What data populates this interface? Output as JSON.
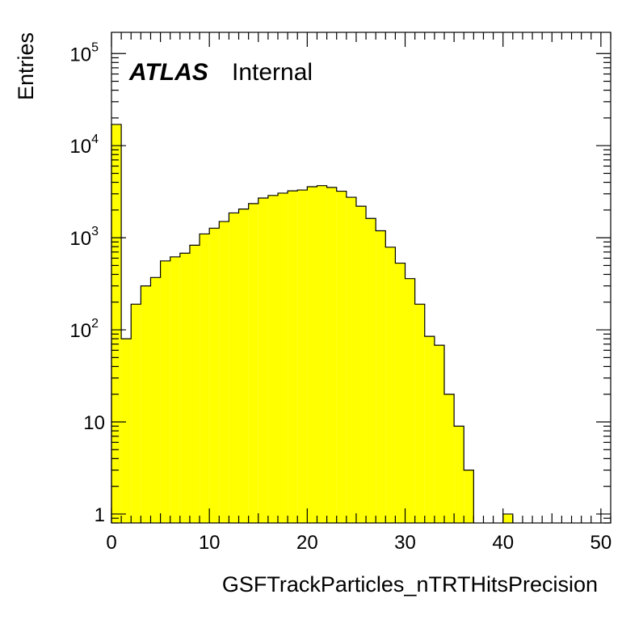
{
  "chart_data": {
    "type": "bar",
    "xlabel": "GSFTrackParticles_nTRTHitsPrecision",
    "ylabel": "Entries",
    "annotations": {
      "experiment": "ATLAS",
      "status": "Internal"
    },
    "xlim": [
      0,
      51
    ],
    "ylim": [
      0.8,
      170000
    ],
    "log_y": true,
    "bin_width": 1,
    "fill_color": "#ffff00",
    "line_color": "#000000",
    "x_ticks": [
      0,
      10,
      20,
      30,
      40,
      50
    ],
    "x_tick_labels": [
      "0",
      "10",
      "20",
      "30",
      "40",
      "50"
    ],
    "y_ticks": [
      1,
      10,
      100,
      1000,
      10000,
      100000
    ],
    "y_tick_labels": [
      {
        "base": "1",
        "exp": ""
      },
      {
        "base": "10",
        "exp": ""
      },
      {
        "base": "10",
        "exp": "2"
      },
      {
        "base": "10",
        "exp": "3"
      },
      {
        "base": "10",
        "exp": "4"
      },
      {
        "base": "10",
        "exp": "5"
      }
    ],
    "bin_low_edges": [
      0,
      1,
      2,
      3,
      4,
      5,
      6,
      7,
      8,
      9,
      10,
      11,
      12,
      13,
      14,
      15,
      16,
      17,
      18,
      19,
      20,
      21,
      22,
      23,
      24,
      25,
      26,
      27,
      28,
      29,
      30,
      31,
      32,
      33,
      34,
      35,
      36,
      37,
      38,
      39,
      40
    ],
    "values": [
      17000,
      80,
      190,
      300,
      370,
      560,
      620,
      680,
      830,
      1100,
      1270,
      1500,
      1860,
      2050,
      2350,
      2700,
      2880,
      3050,
      3230,
      3300,
      3580,
      3680,
      3520,
      3200,
      2750,
      2200,
      1620,
      1190,
      790,
      530,
      360,
      190,
      85,
      68,
      20,
      9,
      3,
      0,
      0,
      0,
      1
    ]
  }
}
